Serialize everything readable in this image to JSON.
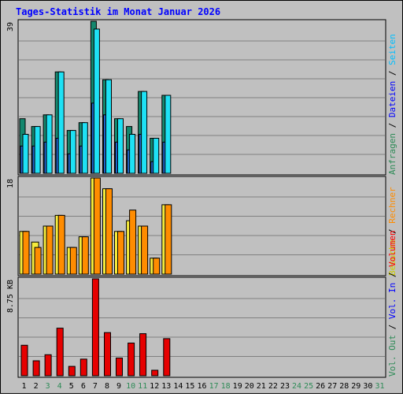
{
  "title": "Tages-Statistik im Monat Januar 2026",
  "days": [
    "1",
    "2",
    "3",
    "4",
    "5",
    "6",
    "7",
    "8",
    "9",
    "10",
    "11",
    "12",
    "13",
    "14",
    "15",
    "16",
    "17",
    "18",
    "19",
    "20",
    "21",
    "22",
    "23",
    "24",
    "25",
    "26",
    "27",
    "28",
    "29",
    "30",
    "31"
  ],
  "weekend_days": [
    3,
    4,
    10,
    11,
    17,
    18,
    24,
    25,
    31
  ],
  "colors": {
    "title": "#0000ff",
    "background": "#ffffff",
    "panel": "#c0c0c0",
    "grid": "#808080",
    "weekday_label": "#000000",
    "weekend_label": "#2e8b57",
    "anfragen": "#14876e",
    "dateien": "#1e64c8",
    "seiten": "#1ee1f5",
    "besuche": "#f5eb3c",
    "rechner": "#ff8c00",
    "vol_out": "#2e8b57",
    "vol_in": "#1e64c8",
    "volumen": "#e60000"
  },
  "right_labels": {
    "top": [
      {
        "text": "Anfragen",
        "color": "#2e8b57"
      },
      {
        "text": " / ",
        "color": "#000000"
      },
      {
        "text": "Dateien",
        "color": "#0000ff"
      },
      {
        "text": " / ",
        "color": "#000000"
      },
      {
        "text": "Seiten",
        "color": "#00bfff"
      }
    ],
    "middle": [
      {
        "text": "Besuche",
        "color": "#cccc00"
      },
      {
        "text": " / ",
        "color": "#000000"
      },
      {
        "text": "Rechner",
        "color": "#ff8c00"
      }
    ],
    "bottom": [
      {
        "text": "Vol. Out",
        "color": "#2e8b57"
      },
      {
        "text": " / ",
        "color": "#000000"
      },
      {
        "text": "Vol. In",
        "color": "#0000ff"
      },
      {
        "text": " / ",
        "color": "#000000"
      },
      {
        "text": "Volumen",
        "color": "#ff0000"
      }
    ]
  },
  "chart_data": [
    {
      "type": "bar",
      "panel": "hits",
      "max_label": "39",
      "ylim": [
        0,
        39
      ],
      "categories": [
        "1",
        "2",
        "3",
        "4",
        "5",
        "6",
        "7",
        "8",
        "9",
        "10",
        "11",
        "12",
        "13"
      ],
      "series": [
        {
          "name": "Anfragen",
          "values": [
            14,
            12,
            15,
            26,
            11,
            13,
            39,
            24,
            14,
            12,
            21,
            9,
            20
          ]
        },
        {
          "name": "Dateien",
          "values": [
            7,
            7,
            8,
            9,
            5,
            7,
            18,
            15,
            8,
            6,
            10,
            3,
            8
          ]
        },
        {
          "name": "Seiten",
          "values": [
            10,
            12,
            15,
            26,
            11,
            13,
            37,
            24,
            14,
            10,
            21,
            9,
            20
          ]
        }
      ]
    },
    {
      "type": "bar",
      "panel": "visits",
      "max_label": "18",
      "ylim": [
        0,
        18
      ],
      "categories": [
        "1",
        "2",
        "3",
        "4",
        "5",
        "6",
        "7",
        "8",
        "9",
        "10",
        "11",
        "12",
        "13"
      ],
      "series": [
        {
          "name": "Besuche",
          "values": [
            8,
            6,
            9,
            11,
            5,
            7,
            18,
            16,
            8,
            10,
            9,
            3,
            13
          ]
        },
        {
          "name": "Rechner",
          "values": [
            8,
            5,
            9,
            11,
            5,
            7,
            18,
            16,
            8,
            12,
            9,
            3,
            13
          ]
        }
      ]
    },
    {
      "type": "bar",
      "panel": "volume",
      "max_label": "8.75 KB",
      "ylim": [
        0,
        8.75
      ],
      "unit": "KB",
      "categories": [
        "1",
        "2",
        "3",
        "4",
        "5",
        "6",
        "7",
        "8",
        "9",
        "10",
        "11",
        "12",
        "13"
      ],
      "series": [
        {
          "name": "Volumen",
          "values": [
            2.75,
            1.35,
            1.9,
            4.3,
            0.85,
            1.5,
            8.75,
            3.9,
            1.6,
            2.95,
            3.8,
            0.5,
            3.35
          ]
        }
      ]
    }
  ]
}
